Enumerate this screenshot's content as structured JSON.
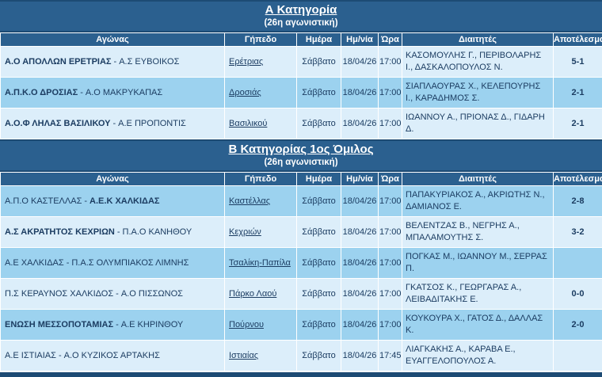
{
  "palette": {
    "band_bg": "#2b608f",
    "band_border": "#1d4b74",
    "row_light": "#dceefa",
    "row_medium": "#9cd2ef",
    "text": "#1c3d62",
    "header_text": "#ffffff"
  },
  "labels": {
    "separator": "-"
  },
  "columns": [
    "Αγώνας",
    "Γήπεδο",
    "Ημέρα",
    "Ημ/νία",
    "Ώρα",
    "Διαιτητές",
    "Αποτέλεσμα"
  ],
  "sections": [
    {
      "title": "Α Κατηγορία",
      "subtitle": "(26η αγωνιστική)",
      "rows": [
        {
          "home_team": "Α.Ο ΑΠΟΛΛΩΝ ΕΡΕΤΡΙΑΣ",
          "away_team": "Α.Σ ΕΥΒΟΙΚΟΣ",
          "winner": "home",
          "venue": "Ερέτριας",
          "day": "Σάββατο",
          "date": "18/04/26",
          "time": "17:00",
          "referees": "ΚΑΣΟΜΟΥΛΗΣ Γ., ΠΕΡΙΒΟΛΑΡΗΣ Ι., ΔΑΣΚΑΛΟΠΟΥΛΟΣ Ν.",
          "result": "5-1"
        },
        {
          "home_team": "Α.Π.Κ.Ο ΔΡΟΣΙΑΣ",
          "away_team": "Α.Ο ΜΑΚΡΥΚΑΠΑΣ",
          "winner": "home",
          "venue": "Δροσιάς",
          "day": "Σάββατο",
          "date": "18/04/26",
          "time": "17:00",
          "referees": "ΣΙΑΠΛΑΟΥΡΑΣ Χ., ΚΕΛΕΠΟΥΡΗΣ Ι., ΚΑΡΑΔΗΜΟΣ Σ.",
          "result": "2-1"
        },
        {
          "home_team": "Α.Ο.Φ ΛΗΛΑΣ ΒΑΣΙΛΙΚΟΥ",
          "away_team": "Α.Ε ΠΡΟΠΟΝΤΙΣ",
          "winner": "home",
          "venue": "Βασιλικού",
          "day": "Σάββατο",
          "date": "18/04/26",
          "time": "17:00",
          "referees": "ΙΩΑΝΝΟΥ Α., ΠΡΙΟΝΑΣ Δ., ΓΙΔΑΡΗ Δ.",
          "result": "2-1"
        }
      ]
    },
    {
      "title": "Β Κατηγορίας 1ος Όμιλος",
      "subtitle": "(26η αγωνιστική)",
      "rows": [
        {
          "home_team": "Α.Π.Ο ΚΑΣΤΕΛΛΑΣ",
          "away_team": "Α.Ε.Κ ΧΑΛΚΙΔΑΣ",
          "winner": "away",
          "venue": "Καστέλλας",
          "day": "Σάββατο",
          "date": "18/04/26",
          "time": "17:00",
          "referees": "ΠΑΠΑΚΥΡΙΑΚΟΣ Α., ΑΚΡΙΩΤΗΣ Ν., ΔΑΜΙΑΝΟΣ Ε.",
          "result": "2-8"
        },
        {
          "home_team": "Α.Σ ΑΚΡΑΤΗΤΟΣ ΚΕΧΡΙΩΝ",
          "away_team": "Π.Α.Ο ΚΑΝΗΘΟΥ",
          "winner": "home",
          "venue": "Κεχριών",
          "day": "Σάββατο",
          "date": "18/04/26",
          "time": "17:00",
          "referees": "ΒΕΛΕΝΤΖΑΣ Β., ΝΕΓΡΗΣ Α., ΜΠΑΛΑΜΟΥΤΗΣ Σ.",
          "result": "3-2"
        },
        {
          "home_team": "Α.Ε ΧΑΛΚΙΔΑΣ",
          "away_team": "Π.Α.Σ ΟΛΥΜΠΙΑΚΟΣ ΛΙΜΝΗΣ",
          "winner": null,
          "venue": "Τσαλίκη-Παπίλα",
          "day": "Σάββατο",
          "date": "18/04/26",
          "time": "17:00",
          "referees": "ΠΟΓΚΑΣ Μ., ΙΩΑΝΝΟΥ Μ., ΣΕΡΡΑΣ Π.",
          "result": ""
        },
        {
          "home_team": "Π.Σ ΚΕΡΑΥΝΟΣ ΧΑΛΚΙΔΟΣ",
          "away_team": "Α.Ο ΠΙΣΣΩΝΟΣ",
          "winner": null,
          "venue": "Πάρκο Λαού",
          "day": "Σάββατο",
          "date": "18/04/26",
          "time": "17:00",
          "referees": "ΓΚΑΤΣΟΣ Κ., ΓΕΩΡΓΑΡΑΣ Α., ΛΕΙΒΑΔΙΤΑΚΗΣ Ε.",
          "result": "0-0"
        },
        {
          "home_team": "ΕΝΩΣΗ ΜΕΣΣΟΠΟΤΑΜΙΑΣ",
          "away_team": "Α.Ε ΚΗΡΙΝΘΟΥ",
          "winner": "home",
          "venue": "Πούρνου",
          "day": "Σάββατο",
          "date": "18/04/26",
          "time": "17:00",
          "referees": "ΚΟΥΚΟΥΡΑ Χ., ΓΑΤΟΣ Δ., ΔΑΛΛΑΣ Κ.",
          "result": "2-0"
        },
        {
          "home_team": "Α.Ε ΙΣΤΙΑΙΑΣ",
          "away_team": "Α.Ο ΚΥΖΙΚΟΣ ΑΡΤΑΚΗΣ",
          "winner": null,
          "venue": "Ιστιαίας",
          "day": "Σάββατο",
          "date": "18/04/26",
          "time": "17:45",
          "referees": "ΛΙΑΓΚΑΚΗΣ Α., ΚΑΡΑΒΑ Ε., ΕΥΑΓΓΕΛΟΠΟΥΛΟΣ Α.",
          "result": ""
        }
      ]
    }
  ]
}
